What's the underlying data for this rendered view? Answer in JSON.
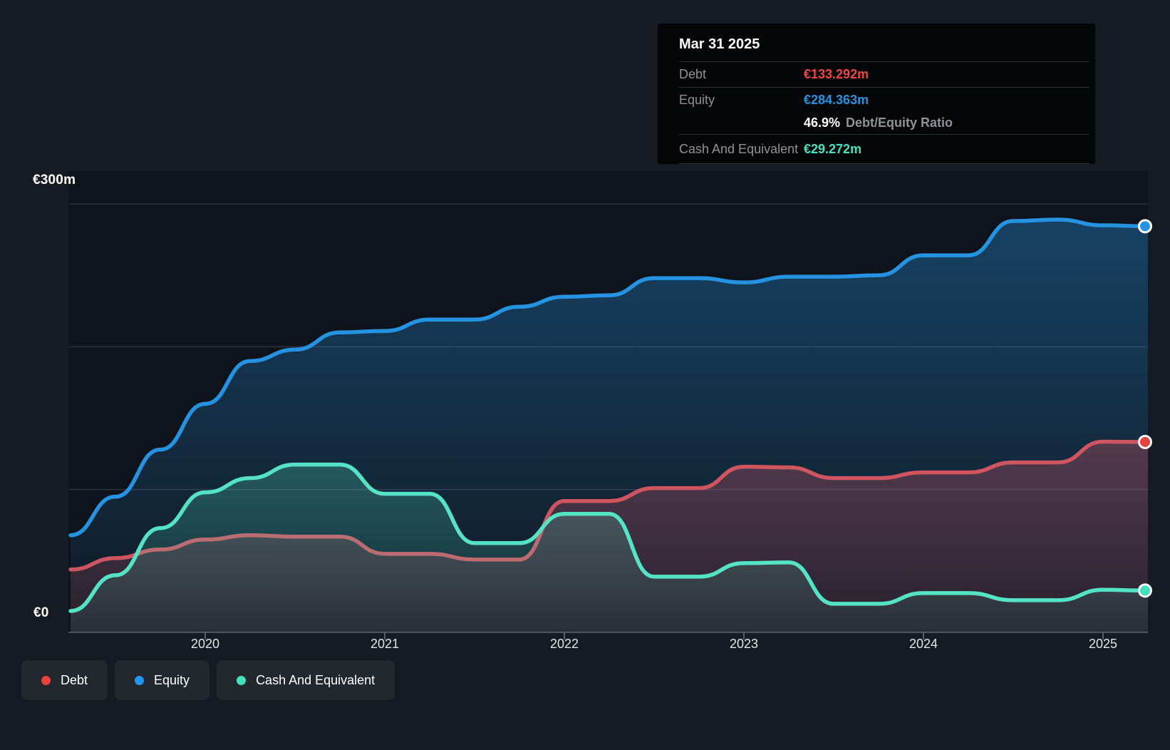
{
  "tooltip": {
    "title": "Mar 31 2025",
    "rows": {
      "debt": {
        "label": "Debt",
        "value": "€133.292m",
        "color": "#ef4545"
      },
      "equity": {
        "label": "Equity",
        "value": "€284.363m",
        "color": "#2593e2"
      },
      "cash": {
        "label": "Cash And Equivalent",
        "value": "€29.272m",
        "color": "#41e3c1"
      }
    },
    "ratio": {
      "value": "46.9%",
      "label": "Debt/Equity Ratio"
    }
  },
  "legend": {
    "items": [
      {
        "label": "Debt",
        "color": "#e8433f"
      },
      {
        "label": "Equity",
        "color": "#2196f3"
      },
      {
        "label": "Cash And Equivalent",
        "color": "#41e0bf"
      }
    ]
  },
  "chart_data": {
    "type": "area",
    "unit": "€m",
    "ylim": [
      0,
      300
    ],
    "grid": true,
    "legend_position": "bottom-left",
    "y_tick_labels": [
      "€300m",
      "€0"
    ],
    "x_tick_labels": [
      "2020",
      "2021",
      "2022",
      "2023",
      "2024",
      "2025"
    ],
    "x_dates": [
      "2019-03-31",
      "2019-06-30",
      "2019-09-30",
      "2019-12-31",
      "2020-03-31",
      "2020-06-30",
      "2020-09-30",
      "2020-12-31",
      "2021-03-31",
      "2021-06-30",
      "2021-09-30",
      "2021-12-31",
      "2022-03-31",
      "2022-06-30",
      "2022-09-30",
      "2022-12-31",
      "2023-03-31",
      "2023-06-30",
      "2023-09-30",
      "2023-12-31",
      "2024-03-31",
      "2024-06-30",
      "2024-09-30",
      "2024-12-31",
      "2025-03-31"
    ],
    "series": [
      {
        "name": "Debt",
        "color": "#cf5560",
        "accent": "#e8433f",
        "values": [
          44,
          52,
          58,
          65,
          68,
          67,
          67,
          55,
          55,
          51,
          51,
          92,
          92,
          101,
          101,
          116,
          115.5,
          108,
          108,
          112,
          112,
          119,
          119,
          133.5,
          133.292
        ]
      },
      {
        "name": "Equity",
        "color": "#2593e2",
        "accent": "#2593e2",
        "values": [
          68,
          95,
          128,
          160,
          190,
          198,
          210,
          211,
          219,
          219,
          228,
          235,
          236,
          248,
          248,
          245,
          249,
          249,
          250,
          264,
          264,
          288,
          289,
          285,
          284.363
        ]
      },
      {
        "name": "Cash And Equivalent",
        "color": "#55e3c5",
        "accent": "#41e0bf",
        "values": [
          15,
          40,
          73,
          98,
          108,
          117.5,
          117.5,
          97,
          97,
          62.5,
          62.5,
          83,
          83,
          39,
          39,
          48.5,
          49,
          20,
          20,
          27.5,
          27.5,
          22.5,
          22.5,
          29.8,
          29.272
        ]
      }
    ]
  }
}
